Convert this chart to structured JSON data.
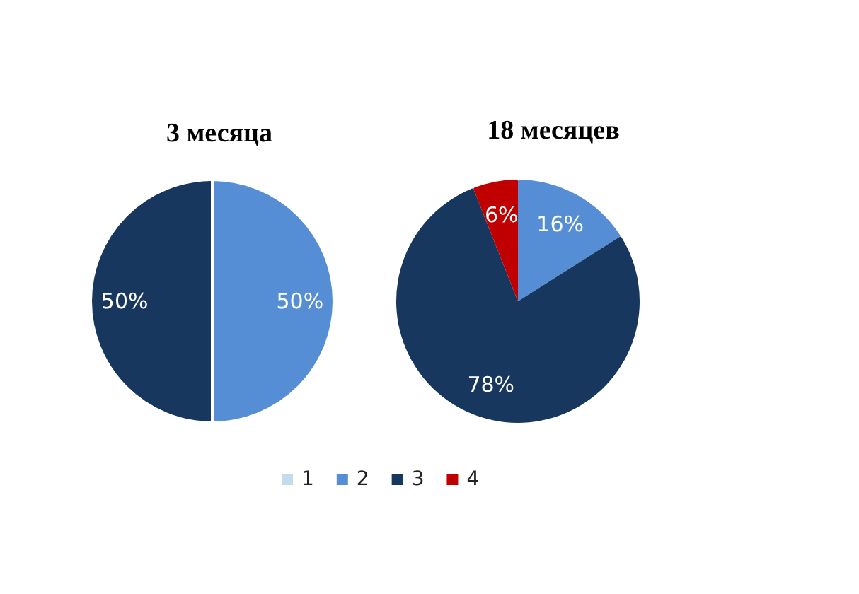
{
  "chart_data": {
    "type": "pie",
    "categories": [
      "1",
      "2",
      "3",
      "4"
    ],
    "colors": [
      "#c6dbea",
      "#558ed5",
      "#17375e",
      "#c00000"
    ],
    "series": [
      {
        "name": "3 месяца",
        "values": [
          0,
          50,
          50,
          0
        ],
        "value_labels": [
          null,
          "50%",
          "50%",
          null
        ]
      },
      {
        "name": "18 месяцев",
        "values": [
          0,
          16,
          78,
          6
        ],
        "value_labels": [
          null,
          "16%",
          "78%",
          "6%"
        ]
      }
    ],
    "legend": "bottom"
  }
}
